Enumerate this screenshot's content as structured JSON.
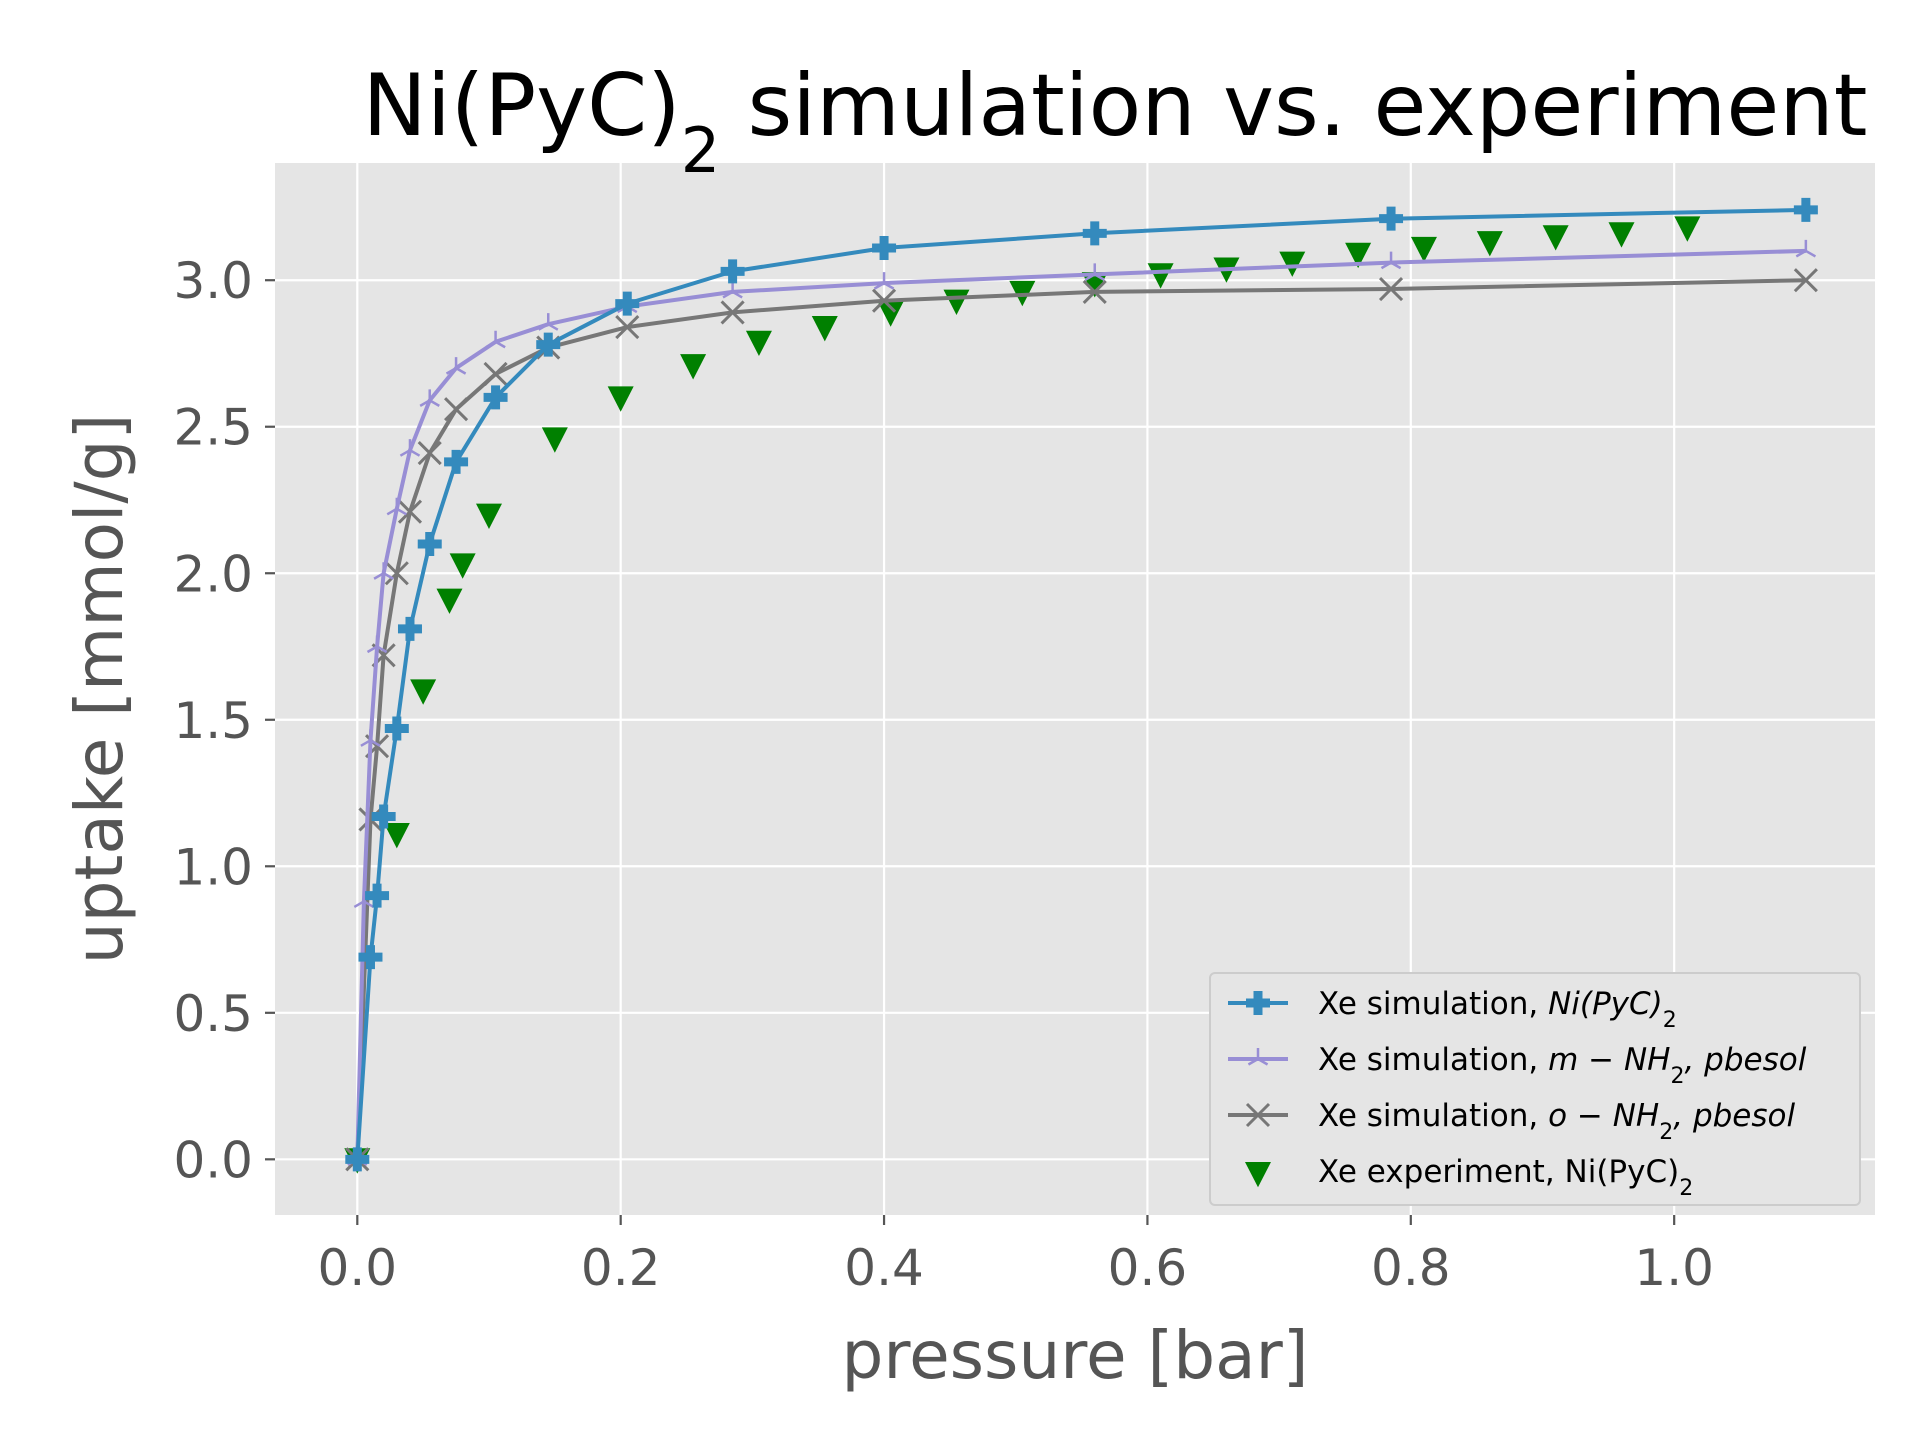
{
  "chart_data": {
    "type": "line",
    "title": {
      "prefix": "Ni(PyC)",
      "sub": "2",
      "suffix": " simulation vs. experiment"
    },
    "xlabel": "pressure [bar]",
    "ylabel": "uptake [mmol/g]",
    "xlim": [
      -0.0625,
      1.1525
    ],
    "ylim": [
      -0.19,
      3.4
    ],
    "xticks": [
      0.0,
      0.2,
      0.4,
      0.6,
      0.8,
      1.0
    ],
    "xtick_labels": [
      "0.0",
      "0.2",
      "0.4",
      "0.6",
      "0.8",
      "1.0"
    ],
    "yticks": [
      0.0,
      0.5,
      1.0,
      1.5,
      2.0,
      2.5,
      3.0
    ],
    "ytick_labels": [
      "0.0",
      "0.5",
      "1.0",
      "1.5",
      "2.0",
      "2.5",
      "3.0"
    ],
    "grid": true,
    "legend_position": "lower right",
    "series": [
      {
        "name": "Xe simulation, Ni(PyC)2",
        "legend": {
          "text": "Xe simulation, ",
          "italic": "Ni",
          "italic2": "(PyC)",
          "sub": "2",
          "tail": ""
        },
        "style": "line-marker",
        "marker": "plus-filled",
        "color": "#348abd",
        "x": [
          0.0,
          0.01,
          0.015,
          0.02,
          0.03,
          0.04,
          0.055,
          0.075,
          0.105,
          0.145,
          0.205,
          0.285,
          0.4,
          0.56,
          0.785,
          1.1
        ],
        "y": [
          0.0,
          0.69,
          0.9,
          1.17,
          1.47,
          1.81,
          2.1,
          2.38,
          2.6,
          2.78,
          2.92,
          3.03,
          3.11,
          3.16,
          3.21,
          3.24
        ]
      },
      {
        "name": "Xe simulation, m−NH2, pbesol",
        "legend": {
          "text": "Xe simulation, ",
          "italic": "m",
          "minus": " − ",
          "italic2": "NH",
          "sub": "2",
          "tail": ", pbesol"
        },
        "style": "line-marker",
        "marker": "tri",
        "color": "#988ed5",
        "x": [
          0.0,
          0.005,
          0.01,
          0.015,
          0.02,
          0.03,
          0.04,
          0.055,
          0.075,
          0.105,
          0.145,
          0.205,
          0.285,
          0.4,
          0.56,
          0.785,
          1.1
        ],
        "y": [
          0.0,
          0.88,
          1.43,
          1.75,
          2.0,
          2.22,
          2.42,
          2.59,
          2.7,
          2.79,
          2.85,
          2.91,
          2.96,
          2.99,
          3.02,
          3.06,
          3.1
        ]
      },
      {
        "name": "Xe simulation, o−NH2, pbesol",
        "legend": {
          "text": "Xe simulation, ",
          "italic": "o",
          "minus": " − ",
          "italic2": "NH",
          "sub": "2",
          "tail": ", pbesol"
        },
        "style": "line-marker",
        "marker": "x",
        "color": "#777777",
        "x": [
          0.0,
          0.01,
          0.015,
          0.02,
          0.03,
          0.04,
          0.055,
          0.075,
          0.105,
          0.145,
          0.205,
          0.285,
          0.4,
          0.56,
          0.785,
          1.1
        ],
        "y": [
          0.0,
          1.16,
          1.41,
          1.72,
          2.0,
          2.21,
          2.41,
          2.56,
          2.68,
          2.77,
          2.84,
          2.89,
          2.93,
          2.96,
          2.97,
          3.0
        ]
      },
      {
        "name": "Xe experiment, Ni(PyC)2",
        "legend": {
          "text": "Xe experiment, Ni(PyC)",
          "sub": "2",
          "tail": ""
        },
        "style": "scatter",
        "marker": "triangle-down",
        "color": "#008000",
        "x": [
          0.0,
          0.03,
          0.05,
          0.07,
          0.08,
          0.1,
          0.15,
          0.2,
          0.255,
          0.305,
          0.355,
          0.405,
          0.455,
          0.505,
          0.56,
          0.61,
          0.66,
          0.71,
          0.76,
          0.81,
          0.86,
          0.91,
          0.96,
          1.01
        ],
        "y": [
          0.0,
          1.11,
          1.6,
          1.91,
          2.03,
          2.2,
          2.46,
          2.6,
          2.71,
          2.79,
          2.84,
          2.89,
          2.93,
          2.96,
          2.99,
          3.02,
          3.04,
          3.06,
          3.09,
          3.11,
          3.13,
          3.15,
          3.16,
          3.18
        ]
      }
    ]
  }
}
